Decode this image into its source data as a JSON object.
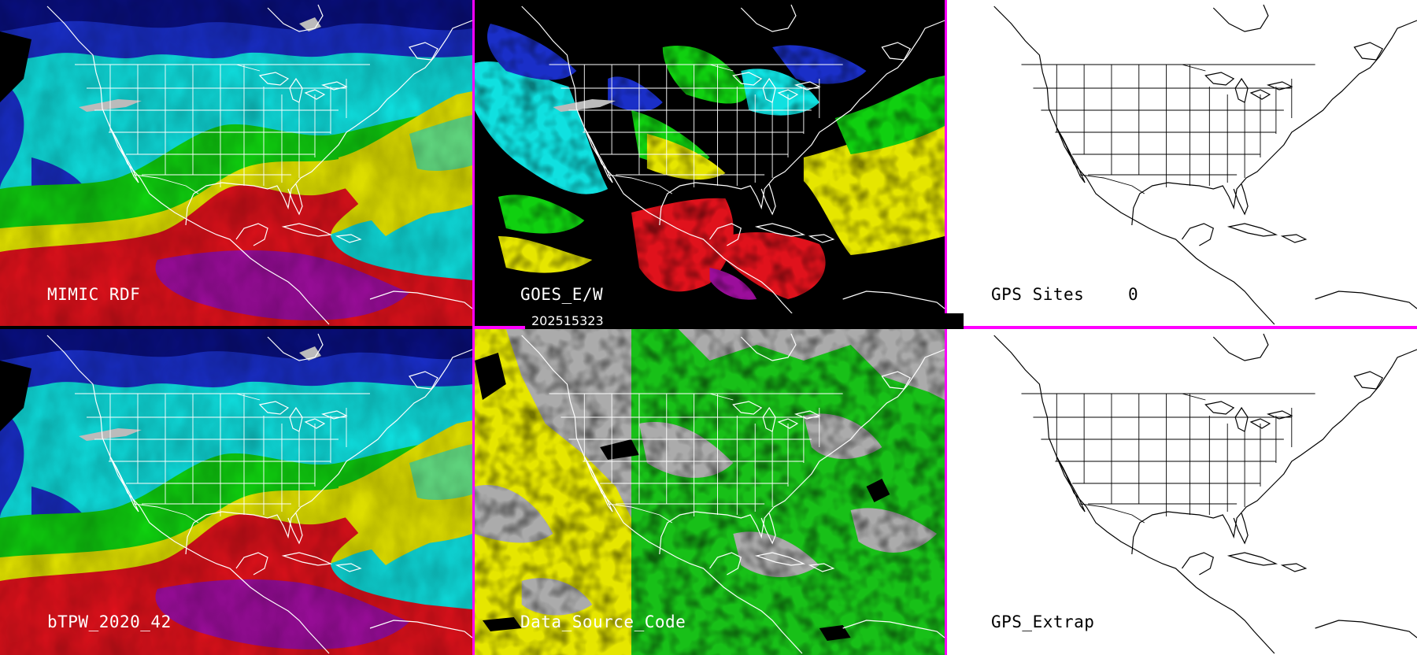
{
  "panels": [
    {
      "label": "MIMIC RDF"
    },
    {
      "label": "GOES_E/W"
    },
    {
      "label": "GPS Sites",
      "count": "0"
    },
    {
      "label": "bTPW_2020_42"
    },
    {
      "label": "Data_Source_Code"
    },
    {
      "label": "GPS_Extrap"
    }
  ],
  "timestamp": "202515323",
  "colors": {
    "separator": "#ff00ff",
    "tpw_purple": "#9b0e9b",
    "tpw_red": "#e0121c",
    "tpw_yellow": "#e6e600",
    "tpw_green": "#10d010",
    "tpw_cyan": "#10e8e8",
    "tpw_blue": "#1a2fc8",
    "tpw_navy": "#0a1080",
    "source_yellow": "#e6e600",
    "source_green": "#18c018",
    "source_gray": "#ababab"
  }
}
